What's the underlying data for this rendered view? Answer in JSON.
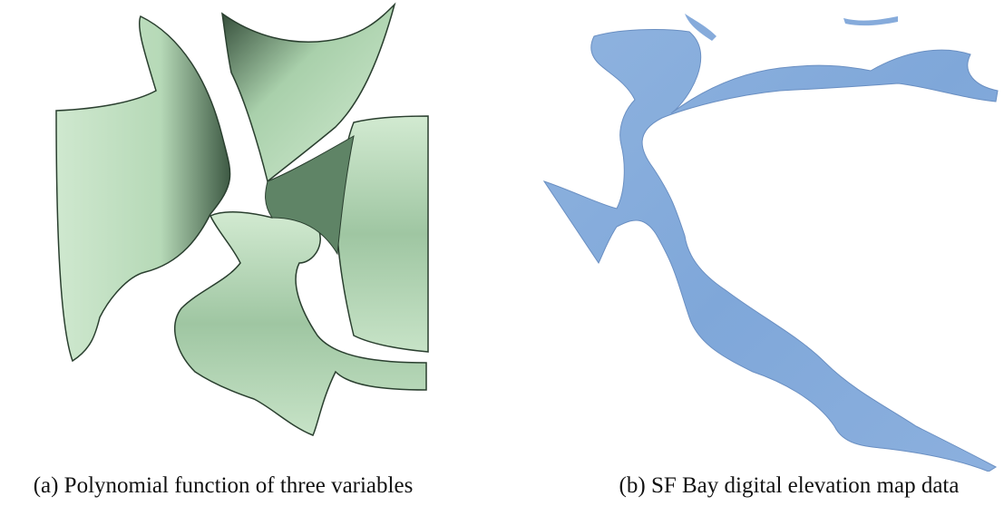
{
  "figures": [
    {
      "caption": "(a) Polynomial function of three variables"
    },
    {
      "caption": "(b) SF Bay digital elevation map data"
    }
  ]
}
